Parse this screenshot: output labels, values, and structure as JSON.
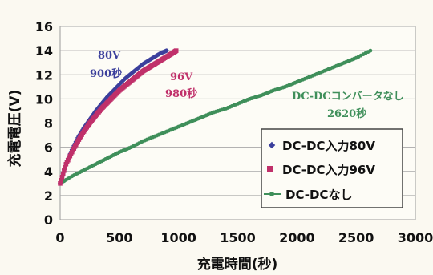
{
  "chart_data": {
    "type": "scatter",
    "xlabel": "充電時間(秒)",
    "ylabel": "充電電圧(V)",
    "xlim": [
      0,
      3000
    ],
    "ylim": [
      0,
      16
    ],
    "xticks": [
      "0",
      "500",
      "1000",
      "1500",
      "2000",
      "2500",
      "3000"
    ],
    "yticks": [
      "0",
      "2",
      "4",
      "6",
      "8",
      "10",
      "12",
      "14",
      "16"
    ],
    "grid": "horizontal",
    "legend_position": "lower-right",
    "series": [
      {
        "name": "DC-DC入力80V",
        "color": "#3b3f9c",
        "marker": "diamond",
        "x": [
          0,
          50,
          100,
          150,
          200,
          250,
          300,
          350,
          400,
          450,
          500,
          550,
          600,
          650,
          700,
          750,
          800,
          850,
          900
        ],
        "y": [
          3.0,
          4.7,
          5.8,
          6.8,
          7.6,
          8.3,
          9.0,
          9.6,
          10.2,
          10.7,
          11.2,
          11.7,
          12.1,
          12.5,
          12.9,
          13.2,
          13.5,
          13.8,
          14.0
        ]
      },
      {
        "name": "DC-DC入力96V",
        "color": "#c0306a",
        "marker": "square",
        "x": [
          0,
          50,
          100,
          150,
          200,
          250,
          300,
          350,
          400,
          450,
          500,
          550,
          600,
          650,
          700,
          750,
          800,
          850,
          900,
          950,
          980
        ],
        "y": [
          3.0,
          4.6,
          5.6,
          6.5,
          7.3,
          8.0,
          8.6,
          9.2,
          9.7,
          10.2,
          10.7,
          11.1,
          11.5,
          11.9,
          12.3,
          12.6,
          12.9,
          13.2,
          13.5,
          13.8,
          14.0
        ]
      },
      {
        "name": "DC-DCなし",
        "color": "#3f8f5a",
        "marker": "dot",
        "x": [
          0,
          100,
          200,
          300,
          400,
          500,
          600,
          700,
          800,
          900,
          1000,
          1100,
          1200,
          1300,
          1400,
          1500,
          1600,
          1700,
          1800,
          1900,
          2000,
          2100,
          2200,
          2300,
          2400,
          2500,
          2620
        ],
        "y": [
          3.0,
          3.6,
          4.1,
          4.6,
          5.1,
          5.6,
          6.0,
          6.5,
          6.9,
          7.3,
          7.7,
          8.1,
          8.5,
          8.9,
          9.2,
          9.6,
          10.0,
          10.3,
          10.7,
          11.0,
          11.4,
          11.8,
          12.2,
          12.6,
          13.0,
          13.4,
          14.0
        ]
      }
    ],
    "annotations": [
      {
        "series": "DC-DC入力80V",
        "lines": [
          "80V",
          "900秒"
        ],
        "color": "#3b3f9c"
      },
      {
        "series": "DC-DC入力96V",
        "lines": [
          "96V",
          "980秒"
        ],
        "color": "#c0306a"
      },
      {
        "series": "DC-DCなし",
        "lines": [
          "DC-DCコンバータなし",
          "2620秒"
        ],
        "color": "#3f8f5a"
      }
    ]
  }
}
